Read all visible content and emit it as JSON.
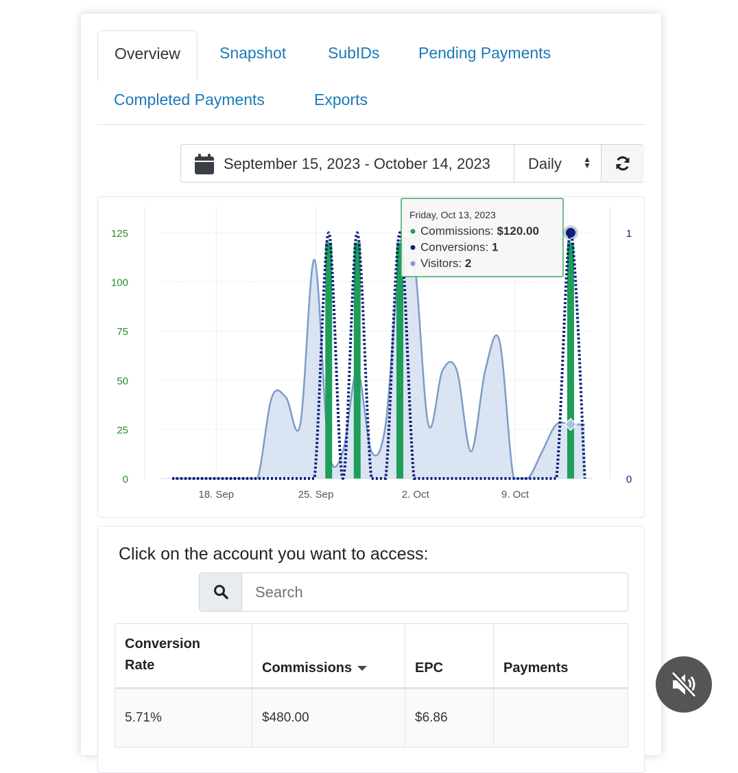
{
  "tabs": [
    {
      "label": "Overview",
      "active": true
    },
    {
      "label": "Snapshot"
    },
    {
      "label": "SubIDs"
    },
    {
      "label": "Pending Payments"
    },
    {
      "label": "Completed Payments"
    },
    {
      "label": "Exports"
    }
  ],
  "toolbar": {
    "date_range": "September 15, 2023 - October 14, 2023",
    "period": "Daily",
    "calendar_icon": "calendar-icon",
    "refresh_icon": "refresh-icon"
  },
  "chart_data": {
    "type": "area",
    "x_ticks": [
      "18. Sep",
      "25. Sep",
      "2. Oct",
      "9. Oct"
    ],
    "y_left_ticks": [
      "0",
      "25",
      "50",
      "75",
      "100",
      "125"
    ],
    "y_right_ticks": [
      "0",
      "1"
    ],
    "colors": {
      "commissions": "#1f9e5a",
      "conversions": "#0a1f7a",
      "visitors": "#7c9cc9",
      "visitors_fill": "#d3dff0",
      "tooltip_border": "#3aa864"
    },
    "days": [
      "Sep 15",
      "Sep 16",
      "Sep 17",
      "Sep 18",
      "Sep 19",
      "Sep 20",
      "Sep 21",
      "Sep 22",
      "Sep 23",
      "Sep 24",
      "Sep 25",
      "Sep 26",
      "Sep 27",
      "Sep 28",
      "Sep 29",
      "Sep 30",
      "Oct 1",
      "Oct 2",
      "Oct 3",
      "Oct 4",
      "Oct 5",
      "Oct 6",
      "Oct 7",
      "Oct 8",
      "Oct 9",
      "Oct 10",
      "Oct 11",
      "Oct 12",
      "Oct 13",
      "Oct 14"
    ],
    "series": [
      {
        "name": "Commissions",
        "axis": "left",
        "values": [
          0,
          0,
          0,
          0,
          0,
          0,
          0,
          0,
          0,
          0,
          0,
          120,
          0,
          120,
          0,
          0,
          120,
          0,
          0,
          0,
          0,
          0,
          0,
          0,
          0,
          0,
          0,
          0,
          120,
          0
        ]
      },
      {
        "name": "Conversions",
        "axis": "right",
        "values": [
          0,
          0,
          0,
          0,
          0,
          0,
          0,
          0,
          0,
          0,
          0,
          1,
          0,
          1,
          0,
          0,
          1,
          0,
          0,
          0,
          0,
          0,
          0,
          0,
          0,
          0,
          0,
          0,
          1,
          0
        ]
      },
      {
        "name": "Visitors",
        "axis": "right",
        "values": [
          0,
          0,
          0,
          0,
          0,
          0,
          0,
          0.33,
          0.33,
          0.22,
          0.89,
          0.11,
          0.11,
          0.44,
          0.11,
          0.22,
          0.89,
          0.89,
          0.22,
          0.44,
          0.44,
          0.11,
          0.44,
          0.56,
          0,
          0,
          0.11,
          0.22,
          0.22,
          0.22
        ]
      }
    ],
    "tooltip": {
      "date": "Friday, Oct 13, 2023",
      "rows": [
        {
          "label": "Commissions:",
          "value": "$120.00",
          "color": "#1f9e5a"
        },
        {
          "label": "Conversions:",
          "value": "1",
          "color": "#0a1f7a"
        },
        {
          "label": "Visitors:",
          "value": "2",
          "color": "#7c9cc9"
        }
      ]
    }
  },
  "accounts": {
    "heading": "Click on the account you want to access:",
    "search_placeholder": "Search",
    "columns": [
      "Conversion Rate",
      "Commissions",
      "EPC",
      "Payments"
    ],
    "rows": [
      [
        "5.71%",
        "$480.00",
        "$6.86",
        ""
      ]
    ]
  }
}
